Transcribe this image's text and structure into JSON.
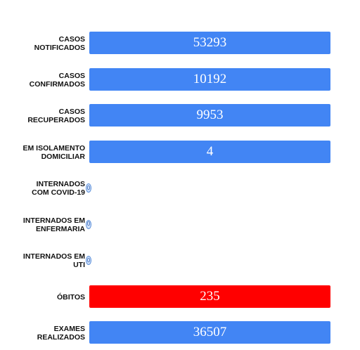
{
  "chart_data": {
    "type": "bar",
    "orientation": "horizontal",
    "categories": [
      "CASOS\nNOTIFICADOS",
      "CASOS\nCONFIRMADOS",
      "CASOS\nRECUPERADOS",
      "EM ISOLAMENTO\nDOMICILIAR",
      "INTERNADOS\nCOM COVID-19",
      "INTERNADOS EM\nENFERMARIA",
      "INTERNADOS EM\nUTI",
      "ÓBITOS",
      "EXAMES\nREALIZADOS"
    ],
    "values": [
      53293,
      10192,
      9953,
      4,
      0,
      0,
      0,
      235,
      36507
    ],
    "value_labels": [
      "53293",
      "10192",
      "9953",
      "4",
      "0",
      "0",
      "0",
      "235",
      "36507"
    ],
    "bar_colors": [
      "#4285f4",
      "#4285f4",
      "#4285f4",
      "#4285f4",
      "#4285f4",
      "#4285f4",
      "#4285f4",
      "#ff0000",
      "#4285f4"
    ],
    "title": "",
    "xlabel": "",
    "ylabel": "",
    "grid": false,
    "legend": "none"
  }
}
